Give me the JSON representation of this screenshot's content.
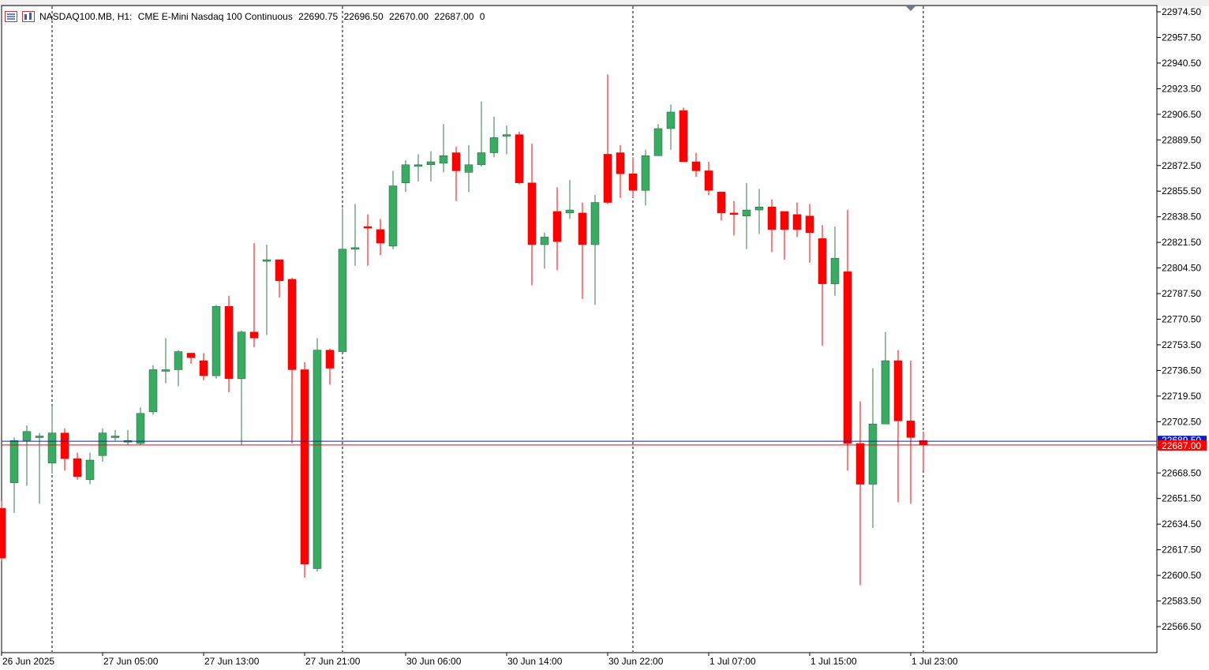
{
  "header": {
    "symbol": "NASDAQ100.MB, H1:",
    "description": "CME E-Mini Nasdaq 100 Continuous",
    "open": "22690.75",
    "high": "22696.50",
    "low": "22670.00",
    "close": "22687.00",
    "volume": "0"
  },
  "price_labels": {
    "bid": "22689.50",
    "last": "22687.00"
  },
  "colors": {
    "bull": "#3aab62",
    "bear": "#ff0000",
    "grid": "#000000",
    "bid_line": "#0b1fbf",
    "last_line": "#ff0000",
    "frame": "#000000"
  },
  "chart_data": {
    "type": "candlestick",
    "timeframe": "H1",
    "y_ticks": [
      "22974.50",
      "22957.50",
      "22940.50",
      "22923.50",
      "22906.50",
      "22889.50",
      "22872.50",
      "22855.50",
      "22838.50",
      "22821.50",
      "22804.50",
      "22787.50",
      "22770.50",
      "22753.50",
      "22736.50",
      "22719.50",
      "22702.50",
      "22685.50",
      "22668.50",
      "22651.50",
      "22634.50",
      "22617.50",
      "22600.50",
      "22583.50",
      "22566.50"
    ],
    "x_ticks": [
      "26 Jun 2025",
      "27 Jun 05:00",
      "27 Jun 13:00",
      "27 Jun 21:00",
      "30 Jun 06:00",
      "30 Jun 14:00",
      "30 Jun 22:00",
      "1 Jul 07:00",
      "1 Jul 15:00",
      "1 Jul 23:00"
    ],
    "ylim": [
      22558,
      22978
    ],
    "candles": [
      [
        22645,
        22650,
        22610,
        22612
      ],
      [
        22662,
        22692,
        22642,
        22690
      ],
      [
        22690,
        22700,
        22660,
        22696
      ],
      [
        22693,
        22695,
        22648,
        22693
      ],
      [
        22675,
        22713,
        22668,
        22695
      ],
      [
        22695,
        22698,
        22670,
        22678
      ],
      [
        22678,
        22682,
        22664,
        22666
      ],
      [
        22664,
        22682,
        22661,
        22677
      ],
      [
        22680,
        22698,
        22676,
        22695
      ],
      [
        22693,
        22697,
        22690,
        22693
      ],
      [
        22690,
        22697,
        22687,
        22690
      ],
      [
        22688,
        22712,
        22687,
        22708
      ],
      [
        22709,
        22740,
        22707,
        22737
      ],
      [
        22736,
        22758,
        22728,
        22737
      ],
      [
        22737,
        22750,
        22726,
        22749
      ],
      [
        22748,
        22748,
        22741,
        22745
      ],
      [
        22743,
        22748,
        22730,
        22733
      ],
      [
        22733,
        22780,
        22731,
        22779
      ],
      [
        22779,
        22786,
        22722,
        22731
      ],
      [
        22731,
        22763,
        22687,
        22762
      ],
      [
        22762,
        22821,
        22752,
        22758
      ],
      [
        22810,
        22820,
        22760,
        22810
      ],
      [
        22810,
        22810,
        22785,
        22796
      ],
      [
        22797,
        22798,
        22688,
        22737
      ],
      [
        22737,
        22742,
        22599,
        22608
      ],
      [
        22605,
        22758,
        22603,
        22750
      ],
      [
        22750,
        22751,
        22727,
        22738
      ],
      [
        22749,
        22844,
        22749,
        22817
      ],
      [
        22817,
        22847,
        22806,
        22818
      ],
      [
        22832,
        22840,
        22806,
        22831
      ],
      [
        22830,
        22837,
        22813,
        22821
      ],
      [
        22819,
        22869,
        22817,
        22859
      ],
      [
        22861,
        22876,
        22855,
        22873
      ],
      [
        22872,
        22880,
        22862,
        22873
      ],
      [
        22873,
        22882,
        22862,
        22875
      ],
      [
        22874,
        22900,
        22868,
        22879
      ],
      [
        22881,
        22885,
        22849,
        22869
      ],
      [
        22868,
        22886,
        22855,
        22873
      ],
      [
        22873,
        22915,
        22872,
        22881
      ],
      [
        22881,
        22905,
        22878,
        22891
      ],
      [
        22893,
        22899,
        22880,
        22893
      ],
      [
        22893,
        22895,
        22860,
        22861
      ],
      [
        22861,
        22887,
        22793,
        22820
      ],
      [
        22820,
        22828,
        22804,
        22825
      ],
      [
        22842,
        22858,
        22803,
        22822
      ],
      [
        22841,
        22863,
        22837,
        22843
      ],
      [
        22841,
        22848,
        22784,
        22820
      ],
      [
        22820,
        22853,
        22780,
        22848
      ],
      [
        22880,
        22933,
        22847,
        22848
      ],
      [
        22881,
        22886,
        22851,
        22867
      ],
      [
        22867,
        22878,
        22851,
        22856
      ],
      [
        22856,
        22883,
        22846,
        22879
      ],
      [
        22879,
        22900,
        22880,
        22897
      ],
      [
        22897,
        22913,
        22883,
        22908
      ],
      [
        22909,
        22911,
        22876,
        22875
      ],
      [
        22875,
        22881,
        22865,
        22869
      ],
      [
        22869,
        22875,
        22853,
        22856
      ],
      [
        22855,
        22855,
        22836,
        22841
      ],
      [
        22841,
        22849,
        22826,
        22840
      ],
      [
        22839,
        22861,
        22817,
        22843
      ],
      [
        22843,
        22857,
        22827,
        22845
      ],
      [
        22845,
        22850,
        22815,
        22830
      ],
      [
        22842,
        22840,
        22810,
        22830
      ],
      [
        22840,
        22848,
        22825,
        22830
      ],
      [
        22839,
        22847,
        22808,
        22828
      ],
      [
        22824,
        22833,
        22753,
        22794
      ],
      [
        22794,
        22832,
        22786,
        22811
      ],
      [
        22802,
        22843,
        22670,
        22688
      ],
      [
        22688,
        22716,
        22594,
        22661
      ],
      [
        22661,
        22738,
        22632,
        22701
      ],
      [
        22701,
        22762,
        22701,
        22743
      ],
      [
        22743,
        22750,
        22649,
        22703
      ],
      [
        22703,
        22743,
        22648,
        22692
      ],
      [
        22690,
        22696,
        22670,
        22687
      ]
    ]
  }
}
